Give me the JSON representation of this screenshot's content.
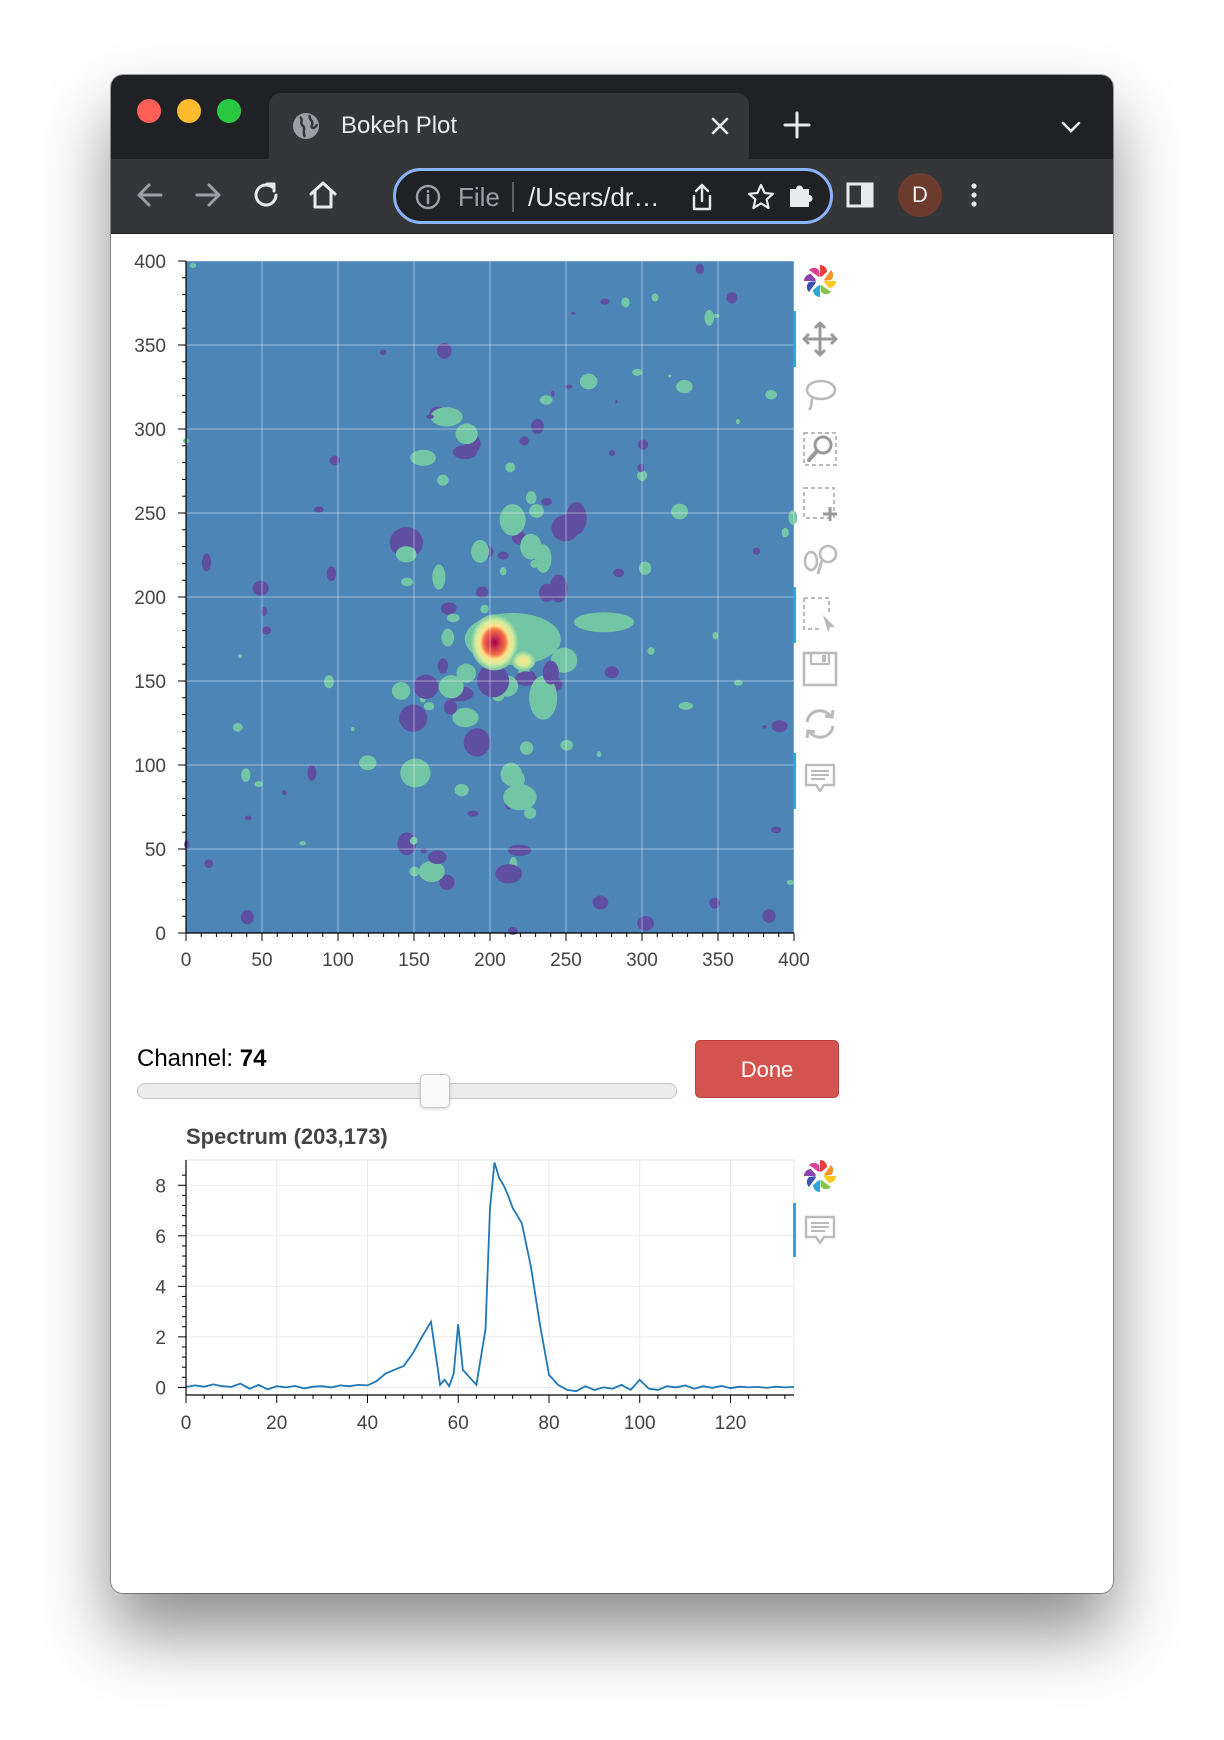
{
  "browser": {
    "tab_title": "Bokeh Plot",
    "omnibox": {
      "scheme_label": "File",
      "url": "/Users/dr…"
    },
    "profile_initial": "D",
    "colors": {
      "tabbar": "#202124",
      "toolbar": "#35363a",
      "focus_ring": "#8ab4f8"
    }
  },
  "controls": {
    "channel_label": "Channel:",
    "channel_value": "74",
    "slider_fraction": 0.55,
    "done_label": "Done",
    "done_color": "#d3534e"
  },
  "image_plot": {
    "toolbar": [
      "bokeh-logo-icon",
      "pan-icon",
      "lasso-select-icon",
      "box-zoom-icon",
      "box-select-icon",
      "crosshair-icon",
      "box-edit-icon",
      "save-icon",
      "reset-icon",
      "hover-icon"
    ]
  },
  "spectrum_plot": {
    "title": "Spectrum (203,173)",
    "toolbar": [
      "bokeh-logo-icon",
      "hover-icon"
    ]
  },
  "chart_data": [
    {
      "type": "heatmap",
      "title": "",
      "xlabel": "",
      "ylabel": "",
      "xlim": [
        0,
        400
      ],
      "ylim": [
        0,
        400
      ],
      "xticks": [
        0,
        50,
        100,
        150,
        200,
        250,
        300,
        350,
        400
      ],
      "yticks": [
        0,
        50,
        100,
        150,
        200,
        250,
        300,
        350,
        400
      ],
      "grid": true,
      "background_color": "#4d85b7",
      "palette": [
        "#5e4fa2",
        "#4d85b7",
        "#73c6a5",
        "#d5ee9b",
        "#fee08b",
        "#f46d43",
        "#9e0142"
      ],
      "peaks": [
        {
          "x": 203,
          "y": 173,
          "level": "max"
        },
        {
          "x": 222,
          "y": 162,
          "level": "high"
        }
      ]
    },
    {
      "type": "line",
      "title": "Spectrum (203,173)",
      "xlabel": "",
      "ylabel": "",
      "xlim": [
        0,
        134
      ],
      "ylim": [
        -0.3,
        9.0
      ],
      "xticks": [
        0,
        20,
        40,
        60,
        80,
        100,
        120
      ],
      "yticks": [
        0,
        2,
        4,
        6,
        8
      ],
      "grid": true,
      "line_color": "#1f77b4",
      "x": [
        0,
        2,
        4,
        6,
        8,
        10,
        12,
        14,
        16,
        18,
        20,
        22,
        24,
        26,
        28,
        30,
        32,
        34,
        36,
        38,
        40,
        42,
        44,
        46,
        48,
        50,
        52,
        54,
        56,
        57,
        58,
        59,
        60,
        61,
        62,
        64,
        66,
        67,
        68,
        69,
        70,
        71,
        72,
        74,
        76,
        78,
        80,
        82,
        84,
        86,
        88,
        90,
        92,
        94,
        96,
        98,
        100,
        102,
        104,
        106,
        108,
        110,
        112,
        114,
        116,
        118,
        120,
        122,
        124,
        126,
        128,
        130,
        132,
        134
      ],
      "values": [
        0.02,
        0.08,
        0.03,
        0.12,
        0.05,
        0.02,
        0.15,
        -0.05,
        0.1,
        -0.08,
        0.05,
        0.0,
        0.06,
        -0.04,
        0.03,
        0.05,
        0.0,
        0.08,
        0.05,
        0.1,
        0.08,
        0.25,
        0.55,
        0.7,
        0.85,
        1.35,
        2.0,
        2.6,
        0.1,
        0.3,
        0.05,
        0.55,
        2.5,
        0.7,
        0.5,
        0.1,
        2.3,
        7.1,
        8.9,
        8.3,
        8.0,
        7.6,
        7.1,
        6.5,
        4.8,
        2.5,
        0.5,
        0.1,
        -0.1,
        -0.15,
        0.05,
        -0.1,
        0.0,
        -0.05,
        0.1,
        -0.1,
        0.3,
        -0.05,
        -0.1,
        0.05,
        0.0,
        0.08,
        -0.05,
        0.05,
        -0.02,
        0.06,
        -0.03,
        0.03,
        0.0,
        0.02,
        -0.02,
        0.03,
        0.0,
        0.02
      ]
    }
  ]
}
